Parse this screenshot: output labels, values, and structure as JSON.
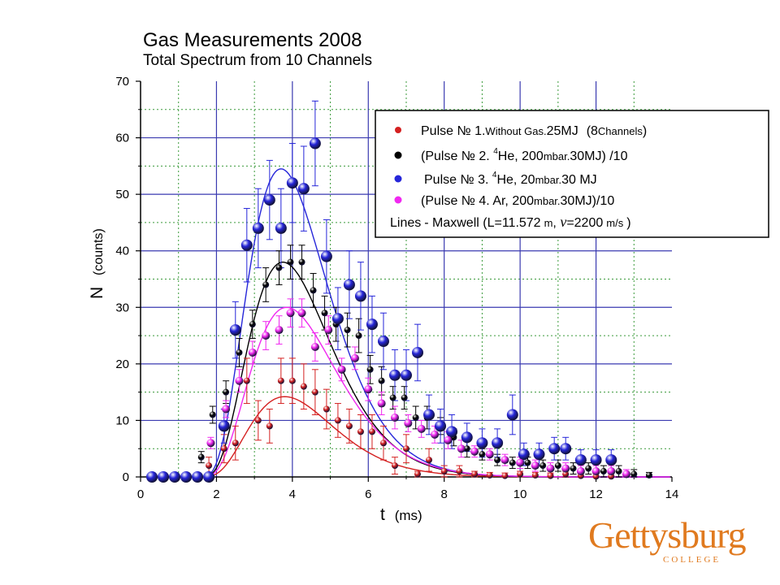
{
  "header": {
    "title": "Gas Measurements 2008",
    "subtitle": "Total Spectrum from 10 Channels"
  },
  "logo": {
    "main": "Gettysburg",
    "sub": "COLLEGE",
    "color": "#e07a1f"
  },
  "chart_data": {
    "type": "scatter",
    "title": "Gas Measurements 2008",
    "subtitle": "Total Spectrum from 10 Channels",
    "xlabel": "t (ms)",
    "ylabel": "N (counts)",
    "xlim": [
      0,
      14
    ],
    "ylim": [
      0,
      70
    ],
    "xticks": [
      0,
      2,
      4,
      6,
      8,
      10,
      12,
      14
    ],
    "yticks": [
      0,
      10,
      20,
      30,
      40,
      50,
      60,
      70
    ],
    "grid": true,
    "legend_position": "top-right",
    "legend_note": "Lines - Maxwell (L=11.572 m, ν=2200 m/s)",
    "series": [
      {
        "name": "Pulse № 1.Without Gas.25MJ (8Channels)",
        "color": "#d42020",
        "marker_size": "small",
        "x": [
          1.8,
          2.2,
          2.5,
          2.8,
          3.1,
          3.4,
          3.7,
          4.0,
          4.3,
          4.6,
          4.9,
          5.2,
          5.5,
          5.8,
          6.1,
          6.4,
          6.7,
          7.0,
          7.3,
          7.6,
          8.0,
          8.4,
          8.8,
          9.2,
          9.6,
          10.0,
          10.4,
          10.8,
          11.2,
          11.6,
          12.0,
          12.4
        ],
        "y": [
          2,
          5,
          6,
          17,
          10,
          9,
          17,
          17,
          16,
          15,
          12,
          10,
          9,
          8,
          8,
          6,
          2,
          5,
          0.5,
          3,
          1,
          1,
          0.5,
          0.3,
          0.2,
          0.5,
          0.3,
          0.2,
          0.5,
          0.2,
          0.1,
          0.1
        ],
        "err": [
          1.5,
          2.5,
          3,
          4,
          3.5,
          3,
          4,
          4,
          4,
          4,
          3.5,
          3,
          3,
          3,
          3,
          3,
          1.5,
          2.5,
          0.5,
          2,
          1,
          1,
          0.5,
          0.5,
          0.5,
          0.5,
          0.5,
          0.5,
          0.5,
          0.5,
          0.5,
          0.5
        ]
      },
      {
        "name": "(Pulse № 2. 4He, 200mbar.30MJ) /10",
        "color": "#000000",
        "marker_size": "small",
        "x": [
          1.6,
          1.9,
          2.25,
          2.6,
          2.95,
          3.3,
          3.65,
          3.95,
          4.25,
          4.55,
          4.85,
          5.15,
          5.45,
          5.75,
          6.05,
          6.35,
          6.65,
          6.95,
          7.25,
          7.55,
          7.9,
          8.25,
          8.6,
          9.0,
          9.4,
          9.8,
          10.2,
          10.6,
          11.0,
          11.4,
          11.8,
          12.2,
          12.6,
          13.0,
          13.4
        ],
        "y": [
          3.5,
          11,
          15,
          22,
          27,
          34,
          37,
          38,
          38,
          33,
          29,
          27,
          26,
          25,
          19,
          17,
          14,
          14,
          10.5,
          10.5,
          9,
          7,
          5,
          4,
          3,
          2.5,
          2.5,
          2,
          2,
          1.5,
          1.5,
          1,
          1,
          0.5,
          0.3
        ],
        "err": [
          1,
          1.5,
          2,
          2.5,
          2.5,
          3,
          3,
          3,
          3,
          3,
          3,
          3,
          3,
          3,
          2.5,
          2.5,
          2,
          2,
          2,
          2,
          1.5,
          1.5,
          1.5,
          1,
          1,
          1,
          1,
          1,
          1,
          1,
          1,
          1,
          1,
          0.8,
          0.5
        ]
      },
      {
        "name": "Pulse № 3. 4He, 20mbar.30 MJ",
        "color": "#2626d9",
        "marker_size": "large",
        "x": [
          0.3,
          0.6,
          0.9,
          1.2,
          1.5,
          1.8,
          2.2,
          2.5,
          2.8,
          3.1,
          3.4,
          3.7,
          4.0,
          4.3,
          4.6,
          4.9,
          5.2,
          5.5,
          5.8,
          6.1,
          6.4,
          6.7,
          7.0,
          7.3,
          7.6,
          7.9,
          8.2,
          8.6,
          9.0,
          9.4,
          9.8,
          10.1,
          10.5,
          10.9,
          11.2,
          11.6,
          12.0,
          12.4
        ],
        "y": [
          0,
          0,
          0,
          0,
          0,
          0,
          9,
          26,
          41,
          44,
          49,
          44,
          52,
          51,
          59,
          39,
          28,
          34,
          32,
          27,
          24,
          18,
          18,
          22,
          11,
          9,
          8,
          7,
          6,
          6,
          11,
          4,
          4,
          5,
          5,
          3,
          3,
          3
        ],
        "err": [
          0.5,
          0.5,
          0.5,
          0.5,
          0.5,
          0.5,
          3,
          5,
          6.5,
          7,
          7,
          7,
          7,
          7.5,
          7.5,
          6.5,
          5.5,
          6,
          6,
          5,
          5,
          4.5,
          4.5,
          5,
          3.5,
          3,
          3,
          2.5,
          2.5,
          2.5,
          3.5,
          2,
          2,
          2,
          2,
          1.8,
          1.8,
          1.8
        ]
      },
      {
        "name": "(Pulse № 4. Ar, 200mbar.30MJ)/10",
        "color": "#f028f0",
        "marker_size": "medium",
        "x": [
          1.85,
          2.25,
          2.6,
          2.95,
          3.3,
          3.65,
          3.95,
          4.25,
          4.6,
          4.95,
          5.3,
          5.65,
          6.0,
          6.35,
          6.7,
          7.05,
          7.4,
          7.75,
          8.1,
          8.45,
          8.8,
          9.2,
          9.6,
          10.0,
          10.4,
          10.8,
          11.2,
          11.6,
          12.0,
          12.4,
          12.8
        ],
        "y": [
          6,
          12,
          17,
          22,
          25,
          26,
          29,
          29,
          23,
          26,
          19,
          21,
          15.5,
          13,
          10.5,
          9.5,
          8.5,
          7.5,
          6.5,
          5,
          4.5,
          4,
          3,
          2.5,
          2,
          1.5,
          1.5,
          1,
          1,
          1,
          0.5
        ],
        "err": [
          1,
          1.5,
          2,
          2,
          2.5,
          2.5,
          2.5,
          2.5,
          2.5,
          2.5,
          2,
          2,
          2,
          2,
          2,
          1.5,
          1.5,
          1.5,
          1.5,
          1.5,
          1,
          1,
          1,
          1,
          1,
          1,
          1,
          1,
          1,
          1,
          0.8
        ]
      }
    ],
    "fits": [
      {
        "series": "Pulse № 1.Without Gas.25MJ (8Channels)",
        "color": "#d42020",
        "peak": 14.2,
        "peak_t": 3.8
      },
      {
        "series": "(Pulse № 2. 4He, 200mbar.30MJ) /10",
        "color": "#000000",
        "peak": 38,
        "peak_t": 3.75
      },
      {
        "series": "Pulse № 3. 4He, 20mbar.30 MJ",
        "color": "#2626d9",
        "peak": 54.5,
        "peak_t": 3.7
      },
      {
        "series": "(Pulse № 4. Ar, 200mbar.30MJ)/10",
        "color": "#f028f0",
        "peak": 30,
        "peak_t": 3.85
      }
    ],
    "legend": {
      "entries": [
        {
          "color": "#d42020",
          "text_a": "Pulse № 1.",
          "text_b": "Without Gas.",
          "text_c": "25MJ",
          "text_d": "(8",
          "text_e": "Channels",
          "text_f": ")"
        },
        {
          "color": "#000000",
          "text_a": "(Pulse № 2. ",
          "sup": "4",
          "text_b": "He, 200",
          "text_c": "mbar.",
          "text_d": "30MJ) /10"
        },
        {
          "color": "#2626d9",
          "text_a": "Pulse № 3. ",
          "sup": "4",
          "text_b": "He, 20",
          "text_c": "mbar.",
          "text_d": "30 MJ"
        },
        {
          "color": "#f028f0",
          "text_a": "(Pulse № 4. Ar, 200",
          "text_c": "mbar.",
          "text_d": "30MJ)/10"
        }
      ],
      "note_a": "Lines",
      "note_b": "- Maxwell (L=11.572",
      "note_c": "m",
      "note_d": ", ",
      "note_nu": "ν",
      "note_e": "=2200",
      "note_f": "m/s",
      "note_g": ")"
    },
    "axis_x_label_a": "t",
    "axis_x_label_b": "(ms)",
    "axis_y_label_a": "N",
    "axis_y_label_b": "(counts)"
  }
}
